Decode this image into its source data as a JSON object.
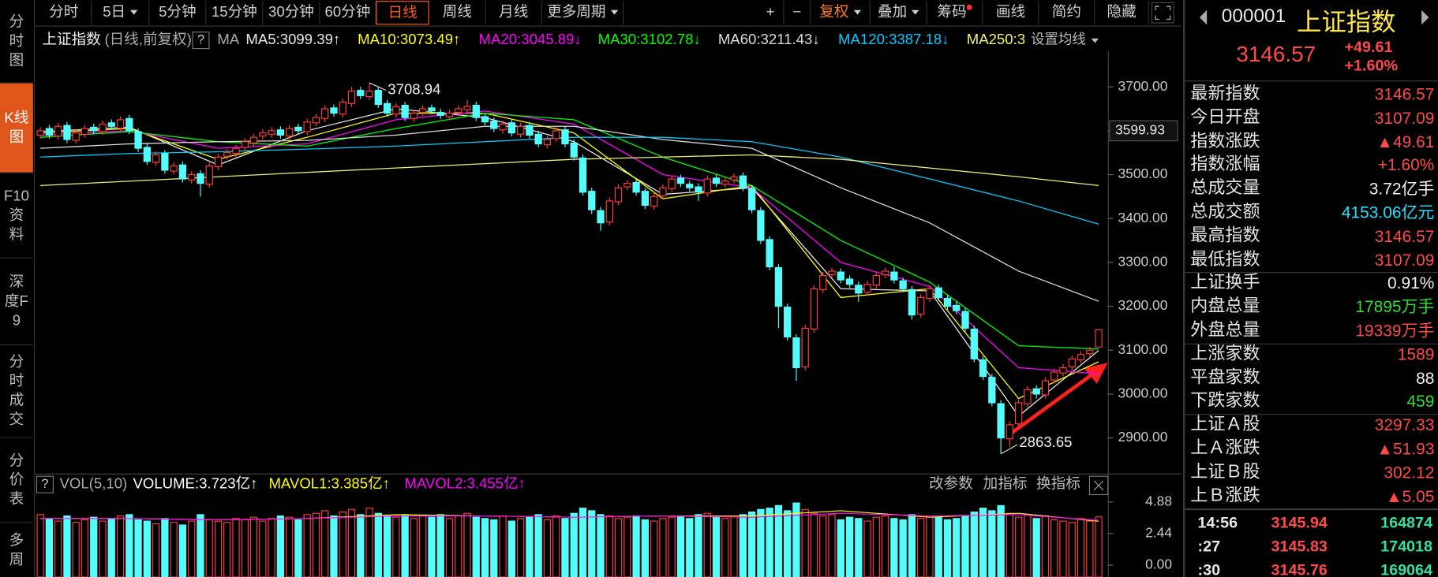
{
  "toolbar": {
    "periods": [
      {
        "label": "分时"
      },
      {
        "label": "5日",
        "dropdown": true
      },
      {
        "label": "5分钟"
      },
      {
        "label": "15分钟"
      },
      {
        "label": "30分钟"
      },
      {
        "label": "60分钟"
      },
      {
        "label": "日线",
        "active": true
      },
      {
        "label": "周线"
      },
      {
        "label": "月线"
      },
      {
        "label": "更多周期",
        "dropdown": true
      }
    ],
    "tools": [
      {
        "label": "+"
      },
      {
        "label": "−"
      },
      {
        "label": "复权",
        "dropdown": true,
        "color": "#ff7a1a"
      },
      {
        "label": "叠加",
        "dropdown": true
      },
      {
        "label": "筹码",
        "dot": true
      },
      {
        "label": "画线"
      },
      {
        "label": "简约"
      },
      {
        "label": "隐藏"
      }
    ]
  },
  "sidebar": [
    {
      "label": "分时图"
    },
    {
      "label": "K线图",
      "active": true
    },
    {
      "label": "F10资料"
    },
    {
      "label": "深度F9"
    },
    {
      "label": "分时成交"
    },
    {
      "label": "分价表"
    },
    {
      "label": "多周"
    }
  ],
  "quote": {
    "code": "000001",
    "name": "上证指数",
    "price": "3146.57",
    "change": "+49.61",
    "change_pct": "+1.60%",
    "groups": [
      [
        {
          "label": "最新指数",
          "value": "3146.57",
          "color": "#ff4a4a"
        },
        {
          "label": "今日开盘",
          "value": "3107.09",
          "color": "#ff4a4a"
        },
        {
          "label": "指数涨跌",
          "value": "▲49.61",
          "color": "#ff4a4a"
        },
        {
          "label": "指数涨幅",
          "value": "+1.60%",
          "color": "#ff4a4a"
        },
        {
          "label": "总成交量",
          "value": "3.72亿手",
          "color": "#f0f0f0"
        },
        {
          "label": "总成交额",
          "value": "4153.06亿元",
          "color": "#22e0ff"
        },
        {
          "label": "最高指数",
          "value": "3146.57",
          "color": "#ff4a4a"
        },
        {
          "label": "最低指数",
          "value": "3107.09",
          "color": "#ff4a4a"
        }
      ],
      [
        {
          "label": "上证换手",
          "value": "0.91%",
          "color": "#f0f0f0"
        },
        {
          "label": "内盘总量",
          "value": "17895万手",
          "color": "#33dd33"
        },
        {
          "label": "外盘总量",
          "value": "19339万手",
          "color": "#ff4a4a"
        }
      ],
      [
        {
          "label": "上涨家数",
          "value": "1589",
          "color": "#ff4a4a"
        },
        {
          "label": "平盘家数",
          "value": "88",
          "color": "#f0f0f0"
        },
        {
          "label": "下跌家数",
          "value": "459",
          "color": "#33dd33"
        }
      ],
      [
        {
          "label": "上证Ａ股",
          "value": "3297.33",
          "color": "#ff4a4a"
        },
        {
          "label": "上Ａ涨跌",
          "value": "▲51.93",
          "color": "#ff4a4a"
        },
        {
          "label": "上证Ｂ股",
          "value": "302.12",
          "color": "#ff4a4a"
        },
        {
          "label": "上Ｂ涨跌",
          "value": "▲5.05",
          "color": "#ff4a4a"
        }
      ]
    ],
    "ticks": [
      {
        "time": "14:56",
        "price": "3145.94",
        "volume": "164874"
      },
      {
        "time": ":27",
        "price": "3145.83",
        "volume": "174018"
      },
      {
        "time": ":30",
        "price": "3145.76",
        "volume": "169064"
      }
    ]
  },
  "chart_data": [
    {
      "type": "candlestick",
      "title": "上证指数",
      "subtitle": "(日线,前复权)",
      "help": "?",
      "legend_prefix": "MA",
      "legend_more": "设置均线",
      "up_color": "#ff3c3c",
      "down_color": "#54fcfc",
      "open": [
        3590,
        3605,
        3588,
        3612,
        3578,
        3592,
        3608,
        3598,
        3618,
        3606,
        3628,
        3598,
        3562,
        3528,
        3548,
        3508,
        3522,
        3488,
        3502,
        3478,
        3518,
        3542,
        3548,
        3562,
        3572,
        3588,
        3592,
        3602,
        3588,
        3608,
        3598,
        3618,
        3628,
        3652,
        3638,
        3662,
        3692,
        3678,
        3692,
        3662,
        3638,
        3658,
        3628,
        3642,
        3652,
        3642,
        3632,
        3642,
        3648,
        3658,
        3632,
        3622,
        3602,
        3618,
        3592,
        3612,
        3592,
        3568,
        3582,
        3602,
        3572,
        3538,
        3462,
        3418,
        3392,
        3438,
        3472,
        3482,
        3462,
        3428,
        3452,
        3468,
        3492,
        3478,
        3472,
        3458,
        3492,
        3478,
        3488,
        3497,
        3468,
        3418,
        3352,
        3288,
        3198,
        3128,
        3062,
        3148,
        3238,
        3272,
        3278,
        3262,
        3248,
        3232,
        3248,
        3272,
        3278,
        3258,
        3238,
        3182,
        3218,
        3242,
        3218,
        3202,
        3188,
        3148,
        3078,
        3038,
        2978,
        2898,
        2932,
        2978,
        3012,
        2998,
        3032,
        3048,
        3062,
        3078,
        3092,
        3107.09
      ],
      "high": [
        3608,
        3613,
        3618,
        3620,
        3603,
        3613,
        3616,
        3623,
        3626,
        3633,
        3636,
        3606,
        3570,
        3553,
        3556,
        3528,
        3530,
        3508,
        3510,
        3528,
        3548,
        3558,
        3568,
        3583,
        3593,
        3603,
        3608,
        3610,
        3613,
        3616,
        3628,
        3638,
        3658,
        3660,
        3673,
        3700,
        3700,
        3708.94,
        3700,
        3670,
        3663,
        3666,
        3648,
        3658,
        3660,
        3650,
        3648,
        3658,
        3670,
        3666,
        3640,
        3630,
        3623,
        3626,
        3618,
        3620,
        3600,
        3588,
        3608,
        3610,
        3580,
        3546,
        3470,
        3426,
        3448,
        3478,
        3488,
        3490,
        3470,
        3458,
        3478,
        3498,
        3500,
        3486,
        3480,
        3498,
        3500,
        3493,
        3503,
        3505,
        3476,
        3426,
        3360,
        3296,
        3206,
        3136,
        3158,
        3248,
        3278,
        3288,
        3286,
        3270,
        3256,
        3258,
        3278,
        3288,
        3290,
        3266,
        3246,
        3228,
        3248,
        3250,
        3226,
        3210,
        3196,
        3156,
        3086,
        3046,
        2986,
        2938,
        2988,
        3018,
        3020,
        3038,
        3058,
        3068,
        3088,
        3098,
        3108,
        3146.57
      ],
      "low": [
        3582,
        3582,
        3580,
        3572,
        3570,
        3584,
        3592,
        3590,
        3602,
        3598,
        3592,
        3552,
        3522,
        3520,
        3502,
        3500,
        3482,
        3480,
        3450,
        3470,
        3510,
        3534,
        3540,
        3554,
        3564,
        3580,
        3584,
        3582,
        3580,
        3592,
        3590,
        3610,
        3620,
        3632,
        3630,
        3654,
        3672,
        3670,
        3652,
        3632,
        3630,
        3622,
        3620,
        3634,
        3637,
        3627,
        3624,
        3634,
        3640,
        3622,
        3612,
        3597,
        3594,
        3587,
        3584,
        3582,
        3562,
        3560,
        3574,
        3562,
        3532,
        3452,
        3410,
        3372,
        3384,
        3430,
        3464,
        3452,
        3422,
        3420,
        3444,
        3460,
        3472,
        3462,
        3440,
        3450,
        3472,
        3470,
        3480,
        3462,
        3412,
        3342,
        3282,
        3150,
        3122,
        3030,
        3054,
        3140,
        3230,
        3264,
        3252,
        3242,
        3210,
        3224,
        3240,
        3264,
        3252,
        3232,
        3170,
        3174,
        3210,
        3212,
        3192,
        3182,
        3142,
        3072,
        3032,
        2972,
        2863.65,
        2880,
        2924,
        2970,
        2990,
        2990,
        3024,
        3040,
        3054,
        3070,
        3084,
        3107.09
      ],
      "close": [
        3600,
        3590,
        3610,
        3580,
        3595,
        3605,
        3600,
        3615,
        3610,
        3625,
        3600,
        3560,
        3530,
        3545,
        3510,
        3520,
        3490,
        3500,
        3480,
        3520,
        3540,
        3550,
        3560,
        3575,
        3585,
        3595,
        3600,
        3590,
        3605,
        3600,
        3620,
        3630,
        3650,
        3640,
        3665,
        3690,
        3680,
        3690,
        3660,
        3640,
        3655,
        3630,
        3640,
        3650,
        3645,
        3635,
        3640,
        3650,
        3655,
        3630,
        3620,
        3605,
        3615,
        3595,
        3610,
        3590,
        3570,
        3580,
        3600,
        3570,
        3540,
        3460,
        3420,
        3390,
        3440,
        3470,
        3480,
        3460,
        3430,
        3450,
        3470,
        3490,
        3480,
        3470,
        3460,
        3490,
        3480,
        3485,
        3495,
        3470,
        3420,
        3350,
        3290,
        3200,
        3130,
        3060,
        3150,
        3240,
        3270,
        3280,
        3260,
        3250,
        3230,
        3250,
        3270,
        3280,
        3260,
        3240,
        3180,
        3220,
        3240,
        3220,
        3200,
        3190,
        3150,
        3080,
        3040,
        2980,
        2900,
        2930,
        2980,
        3010,
        3000,
        3030,
        3050,
        3060,
        3080,
        3090,
        3100,
        3146.57
      ],
      "series": [
        {
          "name": "MA5:3099.39↑",
          "color": "#e8e8e8",
          "x": [
            0,
            10,
            20,
            30,
            40,
            50,
            60,
            70,
            80,
            90,
            100,
            110,
            119
          ],
          "values": [
            3598,
            3608,
            3522,
            3600,
            3650,
            3630,
            3575,
            3455,
            3470,
            3240,
            3235,
            2950,
            3099.39
          ]
        },
        {
          "name": "MA10:3073.49↑",
          "color": "#ffff00",
          "x": [
            0,
            10,
            20,
            30,
            40,
            50,
            60,
            70,
            80,
            90,
            100,
            110,
            119
          ],
          "values": [
            3595,
            3605,
            3535,
            3585,
            3640,
            3640,
            3595,
            3445,
            3475,
            3220,
            3240,
            2990,
            3073.49
          ]
        },
        {
          "name": "MA20:3045.89↓",
          "color": "#ff00ff",
          "x": [
            0,
            10,
            20,
            30,
            40,
            50,
            60,
            70,
            80,
            90,
            100,
            110,
            119
          ],
          "values": [
            3590,
            3600,
            3560,
            3570,
            3625,
            3645,
            3615,
            3500,
            3470,
            3300,
            3245,
            3060,
            3045.89
          ]
        },
        {
          "name": "MA30:3102.78↓",
          "color": "#00ff00",
          "x": [
            0,
            10,
            20,
            30,
            40,
            50,
            60,
            70,
            80,
            90,
            100,
            110,
            119
          ],
          "values": [
            3585,
            3598,
            3575,
            3565,
            3605,
            3640,
            3625,
            3540,
            3475,
            3350,
            3255,
            3110,
            3102.78
          ]
        },
        {
          "name": "MA60:3211.43↓",
          "color": "#dcdcdc",
          "x": [
            0,
            10,
            20,
            30,
            40,
            50,
            60,
            70,
            80,
            90,
            100,
            110,
            119
          ],
          "values": [
            3560,
            3570,
            3575,
            3578,
            3590,
            3610,
            3610,
            3580,
            3560,
            3470,
            3390,
            3280,
            3211.43
          ]
        },
        {
          "name": "MA120:3387.18↓",
          "color": "#00ccff",
          "x": [
            0,
            10,
            20,
            30,
            40,
            50,
            60,
            70,
            80,
            90,
            100,
            110,
            119
          ],
          "values": [
            3540,
            3548,
            3552,
            3558,
            3565,
            3575,
            3585,
            3585,
            3575,
            3540,
            3490,
            3440,
            3387.18
          ]
        },
        {
          "name": "MA250:3",
          "color": "#f0f070",
          "x": [
            0,
            10,
            20,
            30,
            40,
            50,
            60,
            70,
            80,
            90,
            100,
            110,
            119
          ],
          "values": [
            3475,
            3485,
            3495,
            3505,
            3515,
            3525,
            3535,
            3540,
            3545,
            3535,
            3515,
            3495,
            3475
          ]
        }
      ],
      "annotations": [
        {
          "text": "3708.94"
        },
        {
          "text": "2863.65"
        }
      ],
      "marker": {
        "value": 3599.93
      },
      "ylim": [
        2823,
        3781
      ],
      "yticks": [
        {
          "value": 2900,
          "label": "2900.00"
        },
        {
          "value": 3000,
          "label": "3000.00"
        },
        {
          "value": 3100,
          "label": "3100.00"
        },
        {
          "value": 3200,
          "label": "3200.00"
        },
        {
          "value": 3300,
          "label": "3300.00"
        },
        {
          "value": 3400,
          "label": "3400.00"
        },
        {
          "value": 3500,
          "label": "3500.00"
        },
        {
          "value": 3600,
          "label": "3600.00"
        },
        {
          "value": 3700,
          "label": "3700.00"
        }
      ]
    },
    {
      "type": "bar",
      "title": "VOL(5,10)",
      "help": "?",
      "tools": [
        "改参数",
        "加指标",
        "换指标"
      ],
      "series": [
        {
          "name": "VOLUME:3.723亿↑",
          "color": "#ffffff",
          "values": [
            3.9,
            3.6,
            3.4,
            3.8,
            3.3,
            3.5,
            3.7,
            3.4,
            3.6,
            3.8,
            3.9,
            3.5,
            3.4,
            3.2,
            3.6,
            3.3,
            3.1,
            3.4,
            3.9,
            3.5,
            3.4,
            3.3,
            3.6,
            3.5,
            3.7,
            3.4,
            3.6,
            3.8,
            3.7,
            3.5,
            3.9,
            4.0,
            4.2,
            3.8,
            4.1,
            4.3,
            3.9,
            4.4,
            4.0,
            3.8,
            3.7,
            3.9,
            3.6,
            3.8,
            3.7,
            3.9,
            3.6,
            3.8,
            4.0,
            3.7,
            3.6,
            3.5,
            3.8,
            3.4,
            3.6,
            3.7,
            3.9,
            3.5,
            3.8,
            3.6,
            4.0,
            4.4,
            4.2,
            3.9,
            3.8,
            3.6,
            3.7,
            3.8,
            3.5,
            3.4,
            3.6,
            3.7,
            3.8,
            3.6,
            3.9,
            4.0,
            3.7,
            3.6,
            3.8,
            3.9,
            4.1,
            4.3,
            4.4,
            4.6,
            4.2,
            4.8,
            4.3,
            4.0,
            3.8,
            3.9,
            3.5,
            3.7,
            3.6,
            3.4,
            3.7,
            3.8,
            3.6,
            3.5,
            3.9,
            3.6,
            3.8,
            3.7,
            3.5,
            3.6,
            3.8,
            4.1,
            4.4,
            4.2,
            4.6,
            4.0,
            3.7,
            3.9,
            3.6,
            3.8,
            3.5,
            3.4,
            3.3,
            3.6,
            3.4,
            3.723
          ]
        },
        {
          "name": "MAVOL1:3.385亿↑",
          "color": "#ffff00",
          "x": [
            0,
            10,
            20,
            30,
            40,
            50,
            60,
            70,
            80,
            90,
            100,
            110,
            119
          ],
          "values": [
            3.6,
            3.6,
            3.5,
            3.6,
            3.9,
            3.8,
            3.7,
            3.8,
            3.8,
            4.2,
            3.7,
            4.0,
            3.385
          ]
        },
        {
          "name": "MAVOL2:3.455亿↑",
          "color": "#ff00ff",
          "x": [
            0,
            10,
            20,
            30,
            40,
            50,
            60,
            70,
            80,
            90,
            100,
            110,
            119
          ],
          "values": [
            3.6,
            3.6,
            3.5,
            3.6,
            3.8,
            3.8,
            3.7,
            3.8,
            3.7,
            4.0,
            3.8,
            3.9,
            3.455
          ]
        }
      ],
      "ylim": [
        0,
        4.88
      ],
      "yticks": [
        {
          "value": 0,
          "label": "0.00"
        },
        2.44,
        4.88
      ]
    }
  ]
}
